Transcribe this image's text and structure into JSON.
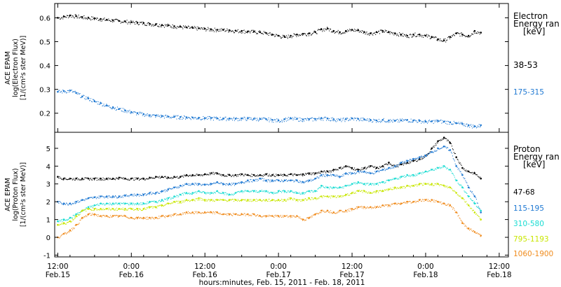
{
  "chart_data": [
    {
      "type": "scatter",
      "panel": "electron",
      "ylabel": [
        "ACE EPAM",
        "log(Electron Flux)",
        "[1/(cm²s ster MeV)]"
      ],
      "ylim": [
        0.12,
        0.66
      ],
      "yticks": [
        "0.2",
        "0.3",
        "0.4",
        "0.5",
        "0.6"
      ],
      "legend_title": [
        "Electron",
        "Energy ran",
        "[keV]"
      ],
      "series": [
        {
          "name": "38-53",
          "color": "#000000",
          "x": [
            0,
            6,
            12,
            18,
            24,
            30,
            36,
            42,
            48,
            54,
            60,
            66,
            72,
            78,
            84,
            90,
            96,
            102,
            108,
            114,
            120,
            126,
            132,
            138,
            144,
            150,
            156,
            162,
            168,
            174,
            180,
            186,
            192,
            198,
            204,
            210,
            216,
            222,
            228,
            234,
            240,
            246,
            252,
            258,
            264,
            270,
            276,
            282,
            288,
            294,
            300,
            306,
            312,
            318,
            324,
            330,
            336,
            342,
            348,
            354,
            360,
            366,
            372,
            378,
            384,
            390,
            396,
            402,
            408,
            414
          ],
          "y": [
            0.6,
            0.605,
            0.61,
            0.607,
            0.603,
            0.6,
            0.598,
            0.595,
            0.592,
            0.59,
            0.587,
            0.585,
            0.582,
            0.58,
            0.578,
            0.575,
            0.573,
            0.57,
            0.568,
            0.565,
            0.563,
            0.56,
            0.558,
            0.556,
            0.554,
            0.552,
            0.55,
            0.55,
            0.548,
            0.546,
            0.545,
            0.543,
            0.542,
            0.54,
            0.536,
            0.53,
            0.525,
            0.52,
            0.525,
            0.53,
            0.533,
            0.535,
            0.54,
            0.552,
            0.555,
            0.545,
            0.54,
            0.545,
            0.55,
            0.548,
            0.54,
            0.535,
            0.54,
            0.545,
            0.54,
            0.535,
            0.53,
            0.525,
            0.53,
            0.53,
            0.525,
            0.52,
            0.51,
            0.505,
            0.52,
            0.535,
            0.53,
            0.525,
            0.545,
            0.538
          ]
        },
        {
          "name": "175-315",
          "color": "#1e78d2",
          "x": [
            0,
            6,
            12,
            18,
            24,
            30,
            36,
            42,
            48,
            54,
            60,
            66,
            72,
            78,
            84,
            90,
            96,
            102,
            108,
            114,
            120,
            126,
            132,
            138,
            144,
            150,
            156,
            162,
            168,
            174,
            180,
            186,
            192,
            198,
            204,
            210,
            216,
            222,
            228,
            234,
            240,
            246,
            252,
            258,
            264,
            270,
            276,
            282,
            288,
            294,
            300,
            306,
            312,
            318,
            324,
            330,
            336,
            342,
            348,
            354,
            360,
            366,
            372,
            378,
            384,
            390,
            396,
            402,
            408,
            414
          ],
          "y": [
            0.29,
            0.293,
            0.295,
            0.285,
            0.27,
            0.262,
            0.25,
            0.242,
            0.232,
            0.225,
            0.218,
            0.212,
            0.205,
            0.2,
            0.196,
            0.192,
            0.19,
            0.188,
            0.186,
            0.185,
            0.184,
            0.183,
            0.182,
            0.181,
            0.18,
            0.18,
            0.179,
            0.178,
            0.178,
            0.177,
            0.178,
            0.178,
            0.177,
            0.176,
            0.175,
            0.172,
            0.17,
            0.175,
            0.178,
            0.176,
            0.174,
            0.175,
            0.176,
            0.18,
            0.178,
            0.175,
            0.172,
            0.175,
            0.178,
            0.176,
            0.174,
            0.172,
            0.17,
            0.172,
            0.17,
            0.168,
            0.17,
            0.172,
            0.17,
            0.168,
            0.165,
            0.166,
            0.168,
            0.165,
            0.162,
            0.158,
            0.155,
            0.15,
            0.145,
            0.15
          ]
        }
      ]
    },
    {
      "type": "scatter",
      "panel": "proton",
      "ylabel": [
        "ACE EPAM",
        "log(Proton Flux)",
        "[1/(cm²s ster MeV)]"
      ],
      "ylim": [
        -1.1,
        5.9
      ],
      "yticks": [
        "-1",
        "0",
        "1",
        "2",
        "3",
        "4",
        "5"
      ],
      "legend_title": [
        "Proton",
        "Energy ran",
        "[keV]"
      ],
      "series": [
        {
          "name": "47-68",
          "color": "#000000",
          "x": [
            0,
            6,
            12,
            18,
            24,
            30,
            36,
            42,
            48,
            54,
            60,
            66,
            72,
            78,
            84,
            90,
            96,
            102,
            108,
            114,
            120,
            126,
            132,
            138,
            144,
            150,
            156,
            162,
            168,
            174,
            180,
            186,
            192,
            198,
            204,
            210,
            216,
            222,
            228,
            234,
            240,
            246,
            252,
            258,
            264,
            270,
            276,
            282,
            288,
            294,
            300,
            306,
            312,
            318,
            324,
            330,
            336,
            342,
            348,
            354,
            360,
            366,
            372,
            378,
            384,
            390,
            396,
            402,
            408,
            414
          ],
          "y": [
            3.4,
            3.3,
            3.3,
            3.3,
            3.3,
            3.3,
            3.3,
            3.3,
            3.3,
            3.3,
            3.35,
            3.3,
            3.3,
            3.3,
            3.3,
            3.35,
            3.4,
            3.4,
            3.35,
            3.4,
            3.4,
            3.5,
            3.5,
            3.5,
            3.55,
            3.6,
            3.6,
            3.5,
            3.5,
            3.5,
            3.55,
            3.5,
            3.5,
            3.5,
            3.55,
            3.5,
            3.5,
            3.5,
            3.55,
            3.5,
            3.55,
            3.6,
            3.6,
            3.7,
            3.7,
            3.8,
            3.9,
            4.0,
            3.9,
            3.8,
            3.9,
            4.0,
            3.9,
            4.0,
            4.2,
            4.0,
            4.1,
            4.2,
            4.3,
            4.4,
            4.6,
            5.0,
            5.4,
            5.6,
            5.3,
            4.5,
            3.9,
            3.7,
            3.6,
            3.3
          ]
        },
        {
          "name": "115-195",
          "color": "#1e78d2",
          "x": [
            0,
            6,
            12,
            18,
            24,
            30,
            36,
            42,
            48,
            54,
            60,
            66,
            72,
            78,
            84,
            90,
            96,
            102,
            108,
            114,
            120,
            126,
            132,
            138,
            144,
            150,
            156,
            162,
            168,
            174,
            180,
            186,
            192,
            198,
            204,
            210,
            216,
            222,
            228,
            234,
            240,
            246,
            252,
            258,
            264,
            270,
            276,
            282,
            288,
            294,
            300,
            306,
            312,
            318,
            324,
            330,
            336,
            342,
            348,
            354,
            360,
            366,
            372,
            378,
            384,
            390,
            396,
            402,
            408,
            414
          ],
          "y": [
            2.0,
            1.9,
            1.9,
            2.0,
            2.1,
            2.2,
            2.25,
            2.3,
            2.3,
            2.3,
            2.3,
            2.35,
            2.4,
            2.4,
            2.4,
            2.5,
            2.5,
            2.6,
            2.7,
            2.8,
            2.9,
            3.0,
            3.0,
            3.0,
            2.95,
            3.0,
            3.1,
            3.0,
            3.0,
            3.0,
            3.1,
            3.2,
            3.2,
            3.3,
            3.2,
            3.2,
            3.2,
            3.2,
            3.2,
            3.2,
            3.1,
            3.2,
            3.3,
            3.5,
            3.5,
            3.5,
            3.4,
            3.6,
            3.6,
            3.7,
            3.7,
            3.6,
            3.7,
            3.8,
            3.9,
            4.0,
            4.2,
            4.3,
            4.4,
            4.5,
            4.6,
            4.8,
            5.0,
            5.1,
            4.9,
            4.0,
            3.5,
            2.8,
            2.3,
            1.4
          ]
        },
        {
          "name": "310-580",
          "color": "#19dcd2",
          "x": [
            0,
            6,
            12,
            18,
            24,
            30,
            36,
            42,
            48,
            54,
            60,
            66,
            72,
            78,
            84,
            90,
            96,
            102,
            108,
            114,
            120,
            126,
            132,
            138,
            144,
            150,
            156,
            162,
            168,
            174,
            180,
            186,
            192,
            198,
            204,
            210,
            216,
            222,
            228,
            234,
            240,
            246,
            252,
            258,
            264,
            270,
            276,
            282,
            288,
            294,
            300,
            306,
            312,
            318,
            324,
            330,
            336,
            342,
            348,
            354,
            360,
            366,
            372,
            378,
            384,
            390,
            396,
            402,
            408,
            414
          ],
          "y": [
            0.9,
            1.0,
            1.1,
            1.3,
            1.5,
            1.7,
            1.8,
            1.9,
            1.9,
            1.9,
            1.9,
            1.9,
            1.9,
            1.9,
            1.9,
            2.0,
            2.0,
            2.1,
            2.2,
            2.3,
            2.4,
            2.5,
            2.5,
            2.6,
            2.5,
            2.5,
            2.6,
            2.5,
            2.4,
            2.5,
            2.6,
            2.6,
            2.6,
            2.6,
            2.6,
            2.5,
            2.6,
            2.6,
            2.6,
            2.5,
            2.5,
            2.6,
            2.6,
            2.9,
            2.8,
            2.8,
            2.8,
            2.9,
            3.0,
            3.1,
            3.0,
            3.0,
            3.0,
            3.1,
            3.2,
            3.3,
            3.4,
            3.5,
            3.5,
            3.6,
            3.7,
            3.8,
            3.9,
            4.0,
            3.8,
            3.2,
            2.8,
            2.3,
            1.9,
            1.5
          ]
        },
        {
          "name": "795-1193",
          "color": "#c8e600",
          "x": [
            0,
            6,
            12,
            18,
            24,
            30,
            36,
            42,
            48,
            54,
            60,
            66,
            72,
            78,
            84,
            90,
            96,
            102,
            108,
            114,
            120,
            126,
            132,
            138,
            144,
            150,
            156,
            162,
            168,
            174,
            180,
            186,
            192,
            198,
            204,
            210,
            216,
            222,
            228,
            234,
            240,
            246,
            252,
            258,
            264,
            270,
            276,
            282,
            288,
            294,
            300,
            306,
            312,
            318,
            324,
            330,
            336,
            342,
            348,
            354,
            360,
            366,
            372,
            378,
            384,
            390,
            396,
            402,
            408,
            414
          ],
          "y": [
            0.7,
            0.8,
            0.9,
            1.2,
            1.5,
            1.6,
            1.6,
            1.6,
            1.6,
            1.6,
            1.6,
            1.6,
            1.6,
            1.6,
            1.6,
            1.7,
            1.7,
            1.8,
            1.9,
            2.0,
            2.0,
            2.1,
            2.1,
            2.2,
            2.1,
            2.1,
            2.1,
            2.1,
            2.1,
            2.1,
            2.1,
            2.1,
            2.1,
            2.1,
            2.1,
            2.1,
            2.1,
            2.1,
            2.2,
            2.1,
            2.1,
            2.2,
            2.2,
            2.3,
            2.3,
            2.3,
            2.3,
            2.4,
            2.5,
            2.6,
            2.6,
            2.5,
            2.6,
            2.6,
            2.7,
            2.8,
            2.8,
            2.9,
            2.9,
            3.0,
            3.0,
            3.0,
            3.0,
            2.9,
            2.8,
            2.5,
            2.2,
            1.8,
            1.4,
            1.0
          ]
        },
        {
          "name": "1060-1900",
          "color": "#f08c1e",
          "x": [
            0,
            6,
            12,
            18,
            24,
            30,
            36,
            42,
            48,
            54,
            60,
            66,
            72,
            78,
            84,
            90,
            96,
            102,
            108,
            114,
            120,
            126,
            132,
            138,
            144,
            150,
            156,
            162,
            168,
            174,
            180,
            186,
            192,
            198,
            204,
            210,
            216,
            222,
            228,
            234,
            240,
            246,
            252,
            258,
            264,
            270,
            276,
            282,
            288,
            294,
            300,
            306,
            312,
            318,
            324,
            330,
            336,
            342,
            348,
            354,
            360,
            366,
            372,
            378,
            384,
            390,
            396,
            402,
            408,
            414
          ],
          "y": [
            0.0,
            0.2,
            0.4,
            0.7,
            1.1,
            1.3,
            1.3,
            1.2,
            1.2,
            1.2,
            1.2,
            1.2,
            1.1,
            1.1,
            1.1,
            1.1,
            1.1,
            1.2,
            1.2,
            1.3,
            1.3,
            1.4,
            1.4,
            1.4,
            1.4,
            1.4,
            1.4,
            1.3,
            1.3,
            1.3,
            1.3,
            1.3,
            1.3,
            1.2,
            1.2,
            1.2,
            1.2,
            1.2,
            1.2,
            1.2,
            1.0,
            1.1,
            1.3,
            1.5,
            1.5,
            1.4,
            1.5,
            1.5,
            1.6,
            1.7,
            1.7,
            1.7,
            1.7,
            1.8,
            1.8,
            1.9,
            1.9,
            2.0,
            2.0,
            2.1,
            2.1,
            2.1,
            2.0,
            1.9,
            1.8,
            1.4,
            0.8,
            0.5,
            0.3,
            0.1
          ]
        }
      ]
    }
  ],
  "x_axis": {
    "range_hours": [
      -3,
      441
    ],
    "ticks": [
      {
        "hours": 0,
        "time": "12:00",
        "date": "Feb.15"
      },
      {
        "hours": 72,
        "time": "0:00",
        "date": "Feb.16"
      },
      {
        "hours": 144,
        "time": "12:00",
        "date": "Feb.16"
      },
      {
        "hours": 216,
        "time": "0:00",
        "date": "Feb.17"
      },
      {
        "hours": 288,
        "time": "12:00",
        "date": "Feb.17"
      },
      {
        "hours": 360,
        "time": "0:00",
        "date": "Feb.18"
      },
      {
        "hours": 432,
        "time": "12:00",
        "date": "Feb.18"
      }
    ],
    "label": "hours:minutes, Feb. 15, 2011 - Feb. 18, 2011"
  }
}
